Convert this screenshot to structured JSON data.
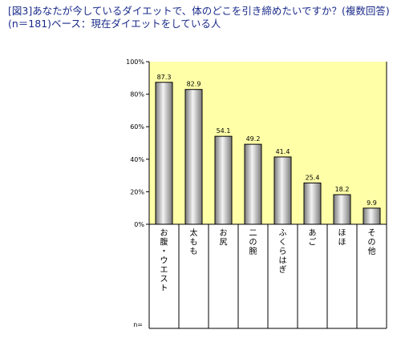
{
  "title": {
    "line1": "[図3]あなたが今しているダイエットで、体のどこを引き締めたいですか？(複数回答)",
    "line2": "(n＝181)ベース：現在ダイエットをしている人"
  },
  "colors": {
    "plot_background": "#ffffa8",
    "title_text": "#1a2b8a",
    "bar_fill_dark": "#7a7a7a",
    "bar_fill_light": "#f4f4f4"
  },
  "chart_data": {
    "type": "bar",
    "title": "",
    "xlabel": "",
    "ylabel": "",
    "categories": [
      "お腹・ウエスト",
      "太もも",
      "お尻",
      "二の腕",
      "ふくらはぎ",
      "あご",
      "ほほ",
      "その他"
    ],
    "values": [
      87.3,
      82.9,
      54.1,
      49.2,
      41.4,
      25.4,
      18.2,
      9.9
    ],
    "data_labels": [
      "87.3",
      "82.9",
      "54.1",
      "49.2",
      "41.4",
      "25.4",
      "18.2",
      "9.9"
    ],
    "ylim": [
      0,
      100
    ],
    "yticks": [
      "0%",
      "20%",
      "40%",
      "60%",
      "80%",
      "100%"
    ],
    "ytick_values": [
      0,
      20,
      40,
      60,
      80,
      100
    ],
    "n_label": "n=",
    "grid": false,
    "legend": "none"
  }
}
